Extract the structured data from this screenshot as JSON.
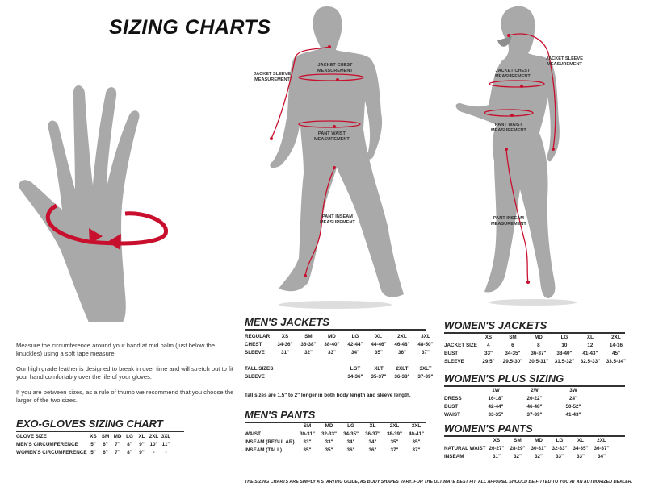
{
  "title": "SIZING CHARTS",
  "colors": {
    "accent": "#c8102e",
    "figure": "#a9a9a9",
    "text": "#222222"
  },
  "figure_labels": {
    "jacket_sleeve": [
      "JACKET SLEEVE",
      "MEASUREMENT"
    ],
    "jacket_chest": [
      "JACKET CHEST",
      "MEASUREMENT"
    ],
    "pant_waist": [
      "PANT WAIST",
      "MEASUREMENT"
    ],
    "pant_inseam": [
      "PANT INSEAM",
      "MEASUREMENT"
    ]
  },
  "glove_instructions": [
    "Measure the circumference around your hand at mid palm (just below the knuckles) using a soft tape measure.",
    "Our high grade leather is designed to break in over time and will stretch out to fit your hand comfortably over the life of your gloves.",
    "If you are between sizes, as a rule of thumb we recommend that you choose the larger of the two sizes."
  ],
  "tables": {
    "gloves": {
      "title": "EXO-GLOVES SIZING CHART",
      "rows": [
        [
          "GLOVE SIZE",
          "XS",
          "SM",
          "MD",
          "LG",
          "XL",
          "2XL",
          "3XL"
        ],
        [
          "MEN'S CIRCUMFERENCE",
          "5\"",
          "6\"",
          "7\"",
          "8\"",
          "9\"",
          "10\"",
          "11\""
        ],
        [
          "WOMEN'S CIRCUMFERENCE",
          "5\"",
          "6\"",
          "7\"",
          "8\"",
          "9\"",
          "-",
          "-"
        ]
      ]
    },
    "mens_jackets": {
      "title": "MEN'S JACKETS",
      "rows": [
        [
          "REGULAR",
          "XS",
          "SM",
          "MD",
          "LG",
          "XL",
          "2XL",
          "3XL"
        ],
        [
          "CHEST",
          "34-36\"",
          "36-38\"",
          "38-40\"",
          "42-44\"",
          "44-46\"",
          "46-48\"",
          "48-50\""
        ],
        [
          "SLEEVE",
          "31\"",
          "32\"",
          "33\"",
          "34\"",
          "35\"",
          "36\"",
          "37\""
        ],
        [
          "",
          "",
          "",
          "",
          "",
          "",
          "",
          ""
        ],
        [
          "TALL SIZES",
          "",
          "",
          "",
          "LGT",
          "XLT",
          "2XLT",
          "3XLT"
        ],
        [
          "SLEEVE",
          "",
          "",
          "",
          "34-36\"",
          "35-37\"",
          "36-38\"",
          "37-39\""
        ]
      ],
      "note": "Tall sizes are 1.5\" to 2\" longer in both body length and sleeve length."
    },
    "mens_pants": {
      "title": "MEN'S PANTS",
      "rows": [
        [
          "",
          "SM",
          "MD",
          "LG",
          "XL",
          "2XL",
          "3XL"
        ],
        [
          "WAIST",
          "30-31\"",
          "32-33\"",
          "34-35\"",
          "36-37\"",
          "38-39\"",
          "40-41\""
        ],
        [
          "INSEAM (REGULAR)",
          "33\"",
          "33\"",
          "34\"",
          "34\"",
          "35\"",
          "35\""
        ],
        [
          "INSEAM (TALL)",
          "35\"",
          "35\"",
          "36\"",
          "36\"",
          "37\"",
          "37\""
        ]
      ]
    },
    "womens_jackets": {
      "title": "WOMEN'S JACKETS",
      "rows": [
        [
          "",
          "XS",
          "SM",
          "MD",
          "LG",
          "XL",
          "2XL"
        ],
        [
          "JACKET SIZE",
          "4",
          "6",
          "8",
          "10",
          "12",
          "14-16"
        ],
        [
          "BUST",
          "33\"",
          "34-35\"",
          "36-37\"",
          "38-40\"",
          "41-43\"",
          "45\""
        ],
        [
          "SLEEVE",
          "29.5\"",
          "29.5-30\"",
          "30.5-31\"",
          "31.5-32\"",
          "32.5-33\"",
          "33.5-34\""
        ]
      ]
    },
    "womens_plus": {
      "title": "WOMEN'S PLUS SIZING",
      "rows": [
        [
          "",
          "1W",
          "2W",
          "3W"
        ],
        [
          "DRESS",
          "16-18\"",
          "20-22\"",
          "24\""
        ],
        [
          "BUST",
          "42-44\"",
          "46-48\"",
          "50-52\""
        ],
        [
          "WAIST",
          "33-35\"",
          "37-39\"",
          "41-43\""
        ]
      ]
    },
    "womens_pants": {
      "title": "WOMEN'S PANTS",
      "rows": [
        [
          "",
          "XS",
          "SM",
          "MD",
          "LG",
          "XL",
          "2XL"
        ],
        [
          "NATURAL WAIST",
          "26-27\"",
          "28-29\"",
          "30-31\"",
          "32-33\"",
          "34-35\"",
          "36-37\""
        ],
        [
          "INSEAM",
          "31\"",
          "32\"",
          "32\"",
          "33\"",
          "33\"",
          "34\""
        ]
      ]
    }
  },
  "disclaimer": "THE SIZING CHARTS ARE SIMPLY A STARTING GUIDE, AS BODY SHAPES VARY. FOR THE ULTIMATE BEST FIT, ALL APPAREL SHOULD BE FITTED TO YOU AT AN AUTHORIZED DEALER."
}
